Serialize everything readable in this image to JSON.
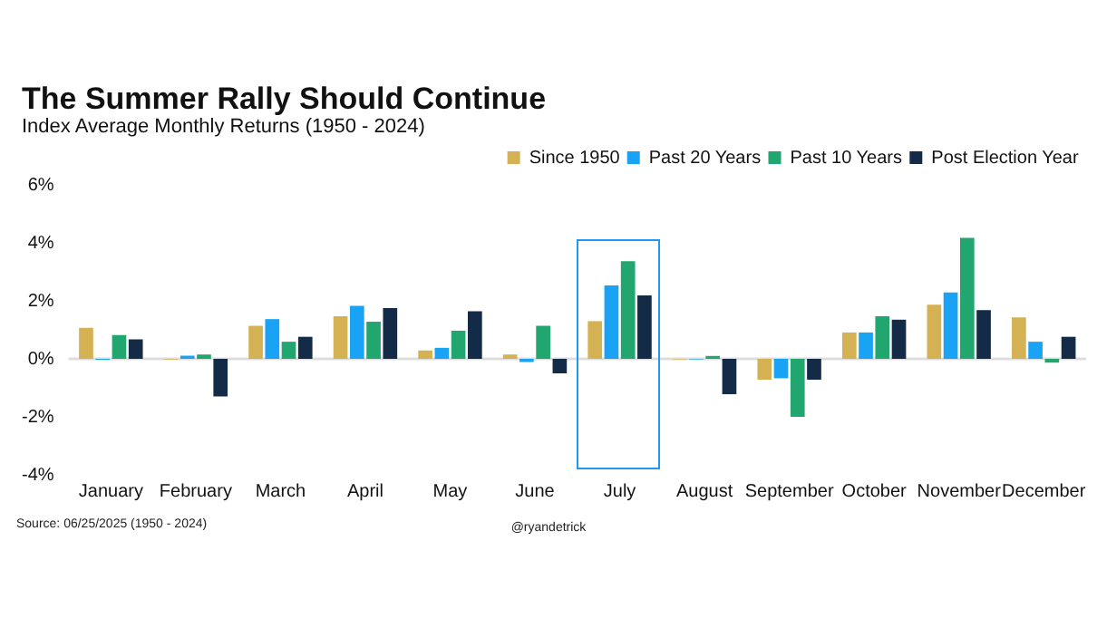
{
  "chart_data": {
    "type": "bar",
    "title": "The Summer Rally Should Continue",
    "subtitle": "Index Average Monthly Returns (1950 - 2024)",
    "categories": [
      "January",
      "February",
      "March",
      "April",
      "May",
      "June",
      "July",
      "August",
      "September",
      "October",
      "November",
      "December"
    ],
    "series": [
      {
        "name": "Since 1950",
        "color": "#d4b254",
        "values": [
          1.07,
          -0.02,
          1.14,
          1.47,
          0.29,
          0.15,
          1.3,
          -0.02,
          -0.72,
          0.91,
          1.87,
          1.43
        ]
      },
      {
        "name": "Past 20 Years",
        "color": "#1aa3f5",
        "values": [
          -0.03,
          0.11,
          1.37,
          1.83,
          0.38,
          -0.11,
          2.53,
          -0.02,
          -0.67,
          0.91,
          2.29,
          0.59
        ]
      },
      {
        "name": "Past 10 Years",
        "color": "#21a66f",
        "values": [
          0.82,
          0.15,
          0.59,
          1.28,
          0.97,
          1.14,
          3.37,
          0.1,
          -2.0,
          1.47,
          4.17,
          -0.13
        ]
      },
      {
        "name": "Post Election Year",
        "color": "#142b47",
        "values": [
          0.67,
          -1.3,
          0.76,
          1.75,
          1.64,
          -0.5,
          2.19,
          -1.22,
          -0.72,
          1.35,
          1.68,
          0.76
        ]
      }
    ],
    "ylim": [
      -4,
      6
    ],
    "yticks": [
      {
        "value": -4,
        "label": "-4%"
      },
      {
        "value": -2,
        "label": "-2%"
      },
      {
        "value": 0,
        "label": "0%"
      },
      {
        "value": 2,
        "label": "2%"
      },
      {
        "value": 4,
        "label": "4%"
      },
      {
        "value": 6,
        "label": "6%"
      }
    ],
    "grid": false,
    "legend": "top right",
    "ref_lines": [
      {
        "axis": "y",
        "value": 0,
        "color": "#dddddd"
      }
    ],
    "annotations": [
      "Source: 06/25/2025 (1950 - 2024)",
      "@ryandetrick"
    ]
  }
}
